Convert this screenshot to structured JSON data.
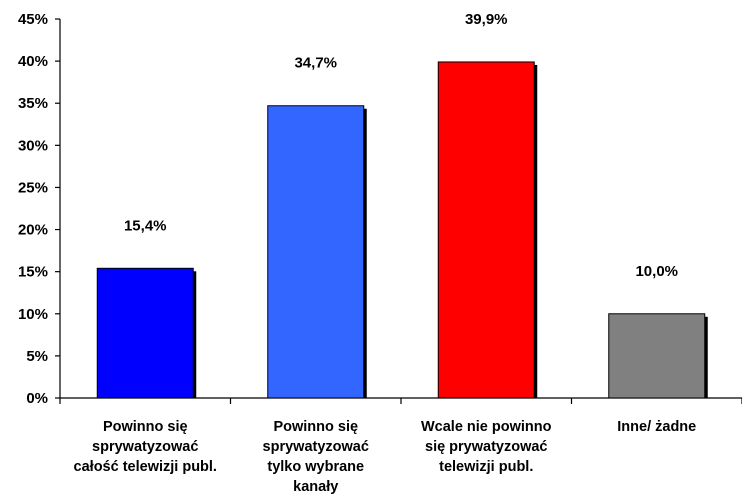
{
  "chart_data": {
    "type": "bar",
    "categories": [
      [
        "Powinno się",
        "sprywatyzować",
        "całość telewizji publ."
      ],
      [
        "Powinno się",
        "sprywatyzować",
        "tylko wybrane",
        "kanały"
      ],
      [
        "Wcale nie powinno",
        "się prywatyzować",
        "telewizji publ."
      ],
      [
        "Inne/ żadne"
      ]
    ],
    "values": [
      15.4,
      34.7,
      39.9,
      10.0
    ],
    "data_labels": [
      "15,4%",
      "34,7%",
      "39,9%",
      "10,0%"
    ],
    "colors": [
      "#0000ff",
      "#3366ff",
      "#ff0000",
      "#808080"
    ],
    "ylim": [
      0,
      45
    ],
    "yticks": [
      0,
      5,
      10,
      15,
      20,
      25,
      30,
      35,
      40,
      45
    ],
    "ytick_labels": [
      "0%",
      "5%",
      "10%",
      "15%",
      "20%",
      "25%",
      "30%",
      "35%",
      "40%",
      "45%"
    ],
    "grid": false,
    "legend": "none"
  }
}
